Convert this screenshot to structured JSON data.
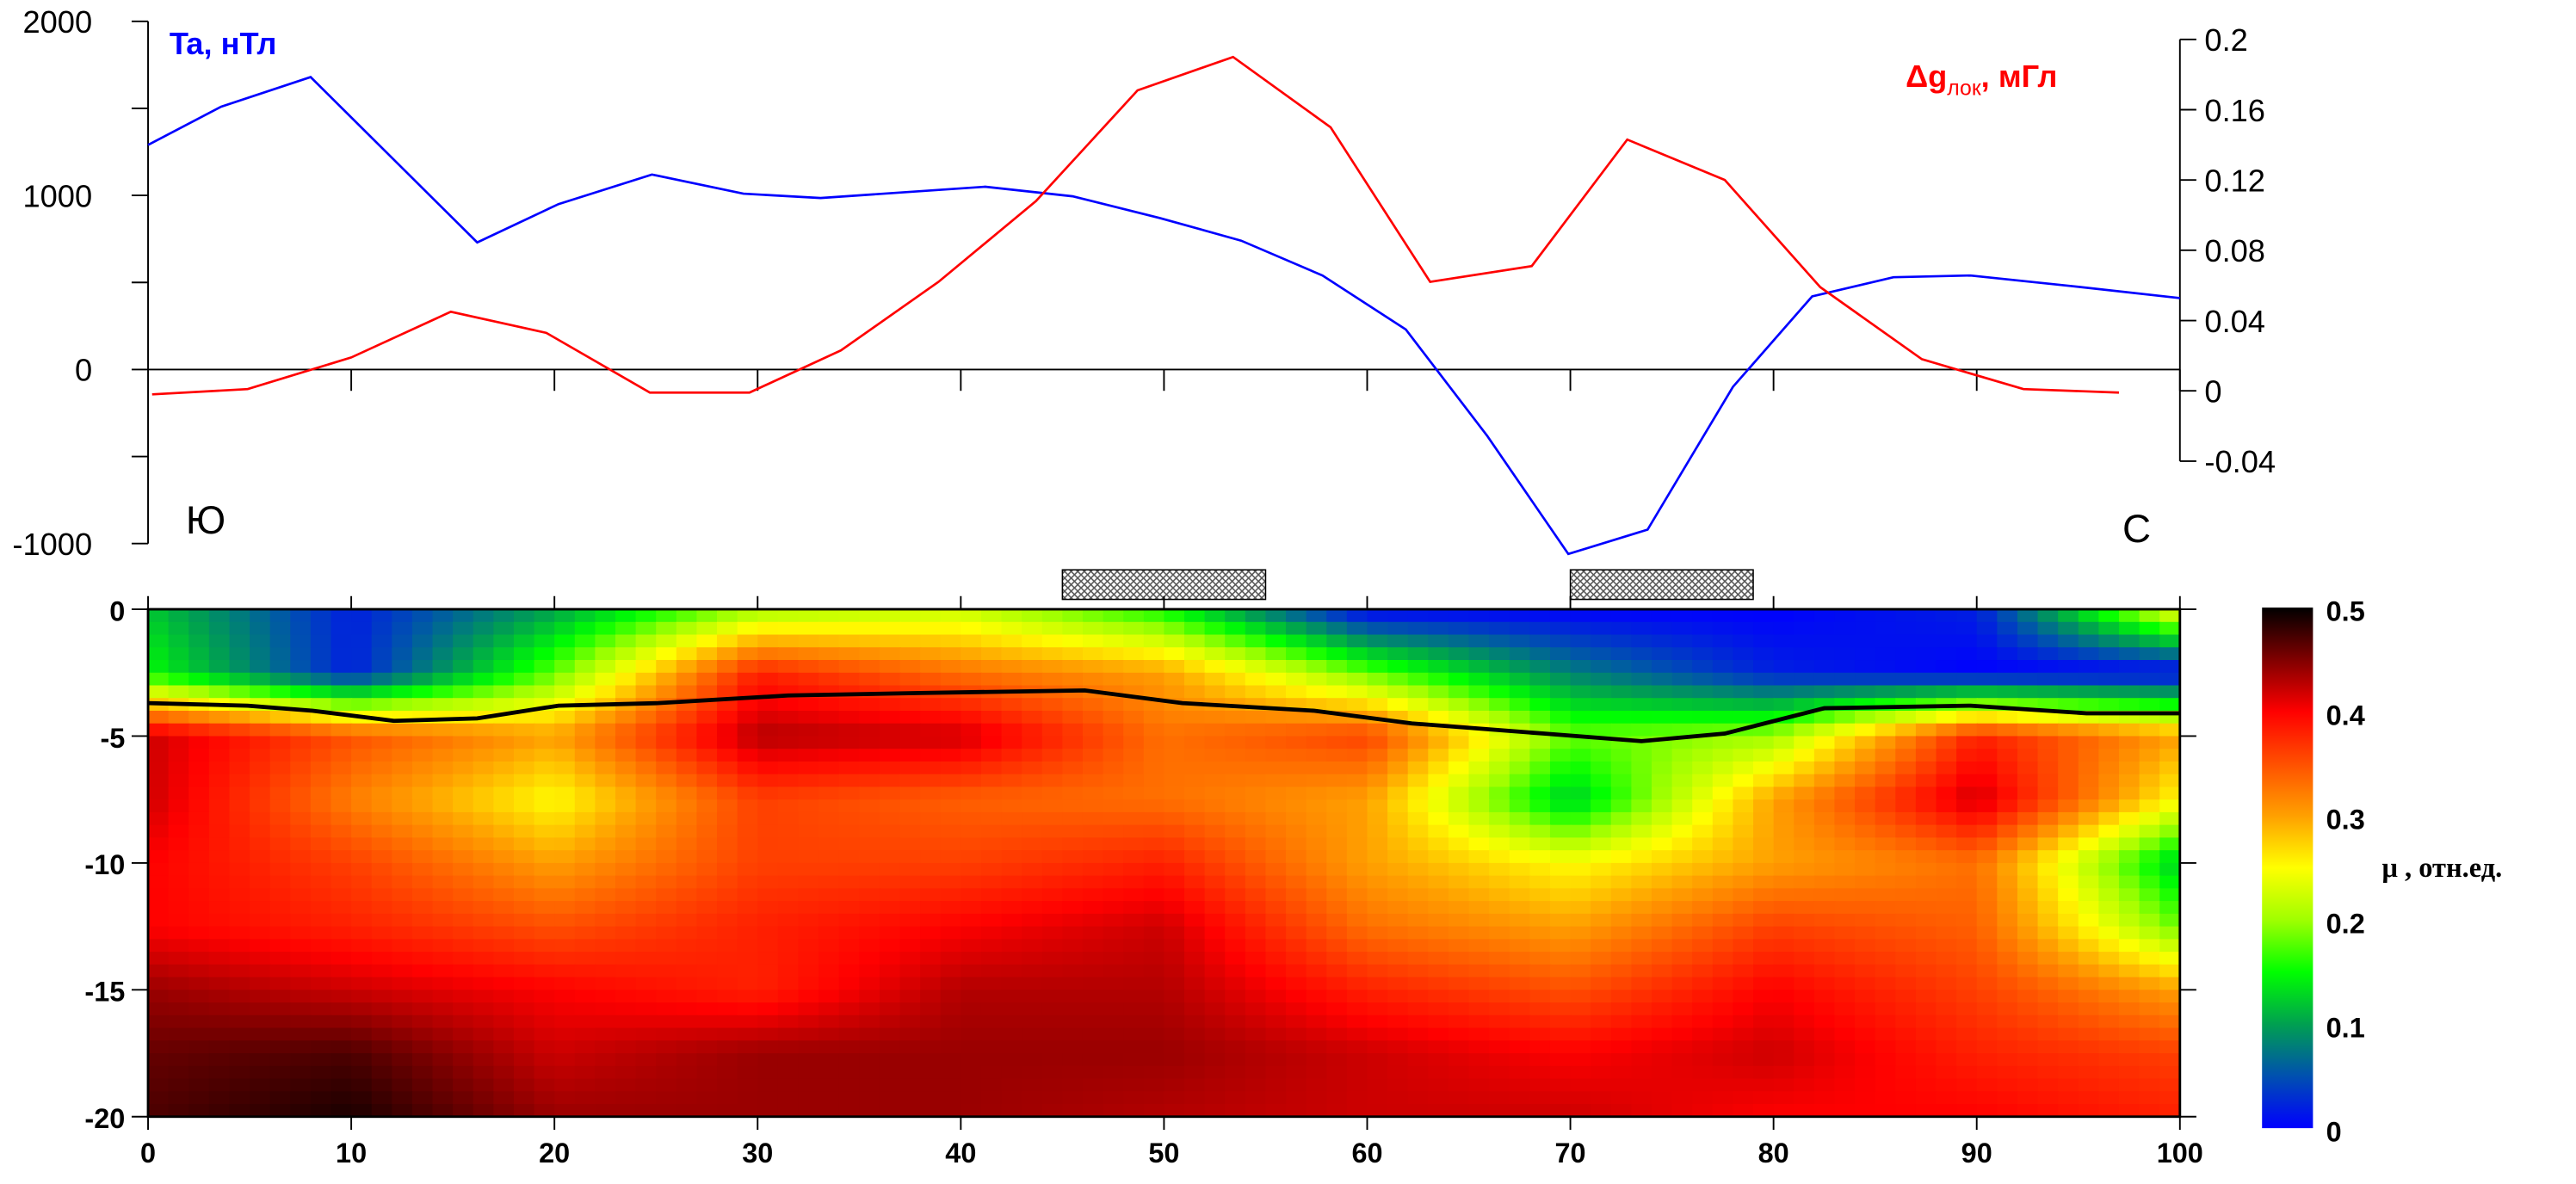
{
  "chart_data": [
    {
      "type": "line",
      "title": "",
      "xlim": [
        0,
        100
      ],
      "left_axis": {
        "label": "Ta, нТл",
        "ylim": [
          -1000,
          2000
        ],
        "ticks": [
          "2000",
          "1000",
          "0",
          "-1000"
        ],
        "tick_values": [
          2000,
          1000,
          0,
          -1000
        ]
      },
      "right_axis": {
        "label_main": "Δg",
        "label_sub": "лок",
        "label_unit": ", мГл",
        "ylim": [
          -0.04,
          0.2
        ],
        "ticks": [
          "0.2",
          "0.16",
          "0.12",
          "0.08",
          "0.04",
          "0",
          "-0.04"
        ],
        "tick_values": [
          0.2,
          0.16,
          0.12,
          0.08,
          0.04,
          0,
          -0.04
        ]
      },
      "direction_left": "Ю",
      "direction_right": "С",
      "series": [
        {
          "name": "Ta, нТл",
          "axis": "left",
          "color": "#0000ff",
          "x": [
            0,
            3.6,
            8,
            16.2,
            20.2,
            24.8,
            29.3,
            33.1,
            41.2,
            45.5,
            49.8,
            53.8,
            57.8,
            61.9,
            65.9,
            69.9,
            73.8,
            78,
            81.9,
            85.9,
            89.7,
            94.6,
            100
          ],
          "y": [
            1290,
            1510,
            1680,
            730,
            950,
            1120,
            1010,
            985,
            1050,
            995,
            870,
            740,
            540,
            230,
            -380,
            -1060,
            -920,
            -100,
            420,
            530,
            540,
            480,
            410
          ]
        },
        {
          "name": "Δg лок, мГл",
          "axis": "right",
          "color": "#ff0000",
          "x": [
            0.2,
            4.9,
            10,
            14.9,
            19.6,
            24.7,
            29.6,
            34.1,
            38.9,
            43.7,
            48.7,
            53.4,
            58.2,
            63.1,
            68.1,
            72.8,
            77.6,
            82.3,
            87.3,
            92.3,
            97
          ],
          "y": [
            -0.002,
            0.001,
            0.019,
            0.045,
            0.033,
            -0.001,
            -0.001,
            0.023,
            0.062,
            0.108,
            0.171,
            0.19,
            0.15,
            0.062,
            0.071,
            0.143,
            0.12,
            0.059,
            0.018,
            0.001,
            -0.001
          ]
        }
      ],
      "hatched_intervals": [
        [
          45,
          55
        ],
        [
          70,
          79
        ]
      ]
    },
    {
      "type": "heatmap",
      "xlim": [
        0,
        100
      ],
      "ylim": [
        -20,
        0
      ],
      "x_ticks": [
        "0",
        "10",
        "20",
        "30",
        "40",
        "50",
        "60",
        "70",
        "80",
        "90",
        "100"
      ],
      "y_ticks": [
        "0",
        "-5",
        "-10",
        "-15",
        "-20"
      ],
      "grid_x": [
        0,
        10,
        20,
        30,
        40,
        50,
        60,
        70,
        80,
        90,
        100
      ],
      "grid_depth": [
        0,
        -2.5,
        -5,
        -7.5,
        -10,
        -12.5,
        -15,
        -17.5,
        -20
      ],
      "values": [
        [
          0.12,
          0.02,
          0.1,
          0.2,
          0.22,
          0.15,
          0,
          0,
          0,
          0.02,
          0.25
        ],
        [
          0.15,
          0.02,
          0.18,
          0.38,
          0.33,
          0.3,
          0.18,
          0.08,
          0.02,
          0,
          0
        ],
        [
          0.42,
          0.35,
          0.3,
          0.43,
          0.42,
          0.33,
          0.36,
          0.18,
          0.2,
          0.38,
          0.3
        ],
        [
          0.42,
          0.32,
          0.25,
          0.36,
          0.34,
          0.33,
          0.3,
          0.12,
          0.3,
          0.42,
          0.25
        ],
        [
          0.4,
          0.36,
          0.3,
          0.36,
          0.36,
          0.38,
          0.3,
          0.25,
          0.3,
          0.33,
          0.12
        ],
        [
          0.4,
          0.38,
          0.35,
          0.38,
          0.4,
          0.42,
          0.33,
          0.3,
          0.36,
          0.34,
          0.18
        ],
        [
          0.44,
          0.42,
          0.4,
          0.38,
          0.43,
          0.43,
          0.38,
          0.35,
          0.4,
          0.36,
          0.3
        ],
        [
          0.46,
          0.47,
          0.42,
          0.44,
          0.44,
          0.44,
          0.42,
          0.4,
          0.42,
          0.38,
          0.36
        ],
        [
          0.47,
          0.49,
          0.44,
          0.44,
          0.44,
          0.43,
          0.42,
          0.42,
          0.4,
          0.4,
          0.38
        ]
      ],
      "boundary_line": {
        "x": [
          0,
          4.9,
          8.1,
          12.1,
          16.2,
          20.2,
          25.1,
          31.5,
          38,
          46.1,
          50.9,
          57.4,
          62.2,
          68.7,
          73.5,
          77.6,
          82.5,
          89.7,
          95.4,
          100
        ],
        "depth": [
          -3.7,
          -3.8,
          -4,
          -4.4,
          -4.3,
          -3.8,
          -3.7,
          -3.4,
          -3.3,
          -3.2,
          -3.7,
          -4,
          -4.5,
          -4.9,
          -5.2,
          -4.9,
          -3.9,
          -3.8,
          -4.1,
          -4.1
        ]
      },
      "colorbar": {
        "label": "μ , отн.ед.",
        "range": [
          0,
          0.5
        ],
        "ticks": [
          "0.5",
          "0.4",
          "0.3",
          "0.2",
          "0.1",
          "0"
        ],
        "tick_values": [
          0.5,
          0.4,
          0.3,
          0.2,
          0.1,
          0
        ],
        "colors": [
          "#0000ff",
          "#0050b0",
          "#00a050",
          "#00ff00",
          "#a0ff00",
          "#ffff00",
          "#ffa000",
          "#ff5000",
          "#ff0000",
          "#800000",
          "#000000"
        ]
      }
    }
  ]
}
